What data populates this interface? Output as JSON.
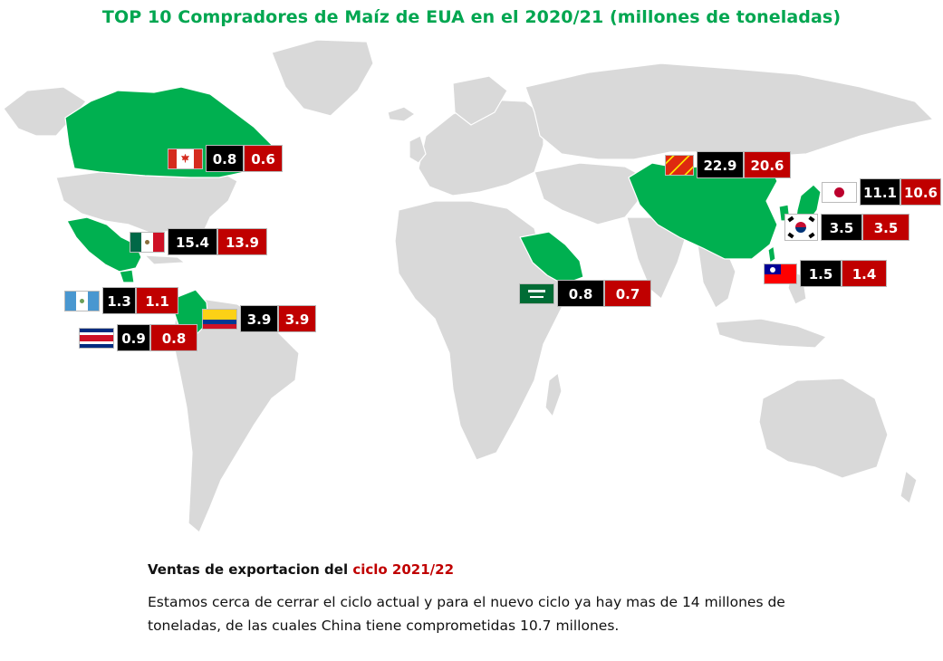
{
  "title": "TOP 10 Compradores de Maíz de EUA en el 2020/21 (millones de toneladas)",
  "colors": {
    "highlight_country": "#00b050",
    "land": "#d9d9d9",
    "border": "#ffffff",
    "value_box_1": "#000000",
    "value_box_2": "#c00000"
  },
  "buyers": [
    {
      "country": "Canadá",
      "flag": "canada-flag",
      "value_1": "0.8",
      "value_2": "0.6"
    },
    {
      "country": "México",
      "flag": "mexico-flag",
      "value_1": "15.4",
      "value_2": "13.9"
    },
    {
      "country": "Guatemala",
      "flag": "guatemala-flag",
      "value_1": "1.3",
      "value_2": "1.1"
    },
    {
      "country": "Colombia",
      "flag": "colombia-flag",
      "value_1": "3.9",
      "value_2": "3.9"
    },
    {
      "country": "Costa Rica",
      "flag": "costa-rica-flag",
      "value_1": "0.9",
      "value_2": "0.8"
    },
    {
      "country": "Arabia Saudita",
      "flag": "saudi-arabia-flag",
      "value_1": "0.8",
      "value_2": "0.7"
    },
    {
      "country": "China",
      "flag": "china-flag",
      "value_1": "22.9",
      "value_2": "20.6"
    },
    {
      "country": "Japón",
      "flag": "japan-flag",
      "value_1": "11.1",
      "value_2": "10.6"
    },
    {
      "country": "Corea del Sur",
      "flag": "south-korea-flag",
      "value_1": "3.5",
      "value_2": "3.5"
    },
    {
      "country": "Taiwán",
      "flag": "taiwan-flag",
      "value_1": "1.5",
      "value_2": "1.4"
    }
  ],
  "footer": {
    "heading_prefix": "Ventas de exportacion del ",
    "heading_highlight": "ciclo 2021/22",
    "body": "Estamos cerca de cerrar el ciclo actual y para el nuevo ciclo ya hay mas de 14 millones de toneladas, de las cuales China tiene comprometidas 10.7 millones."
  }
}
